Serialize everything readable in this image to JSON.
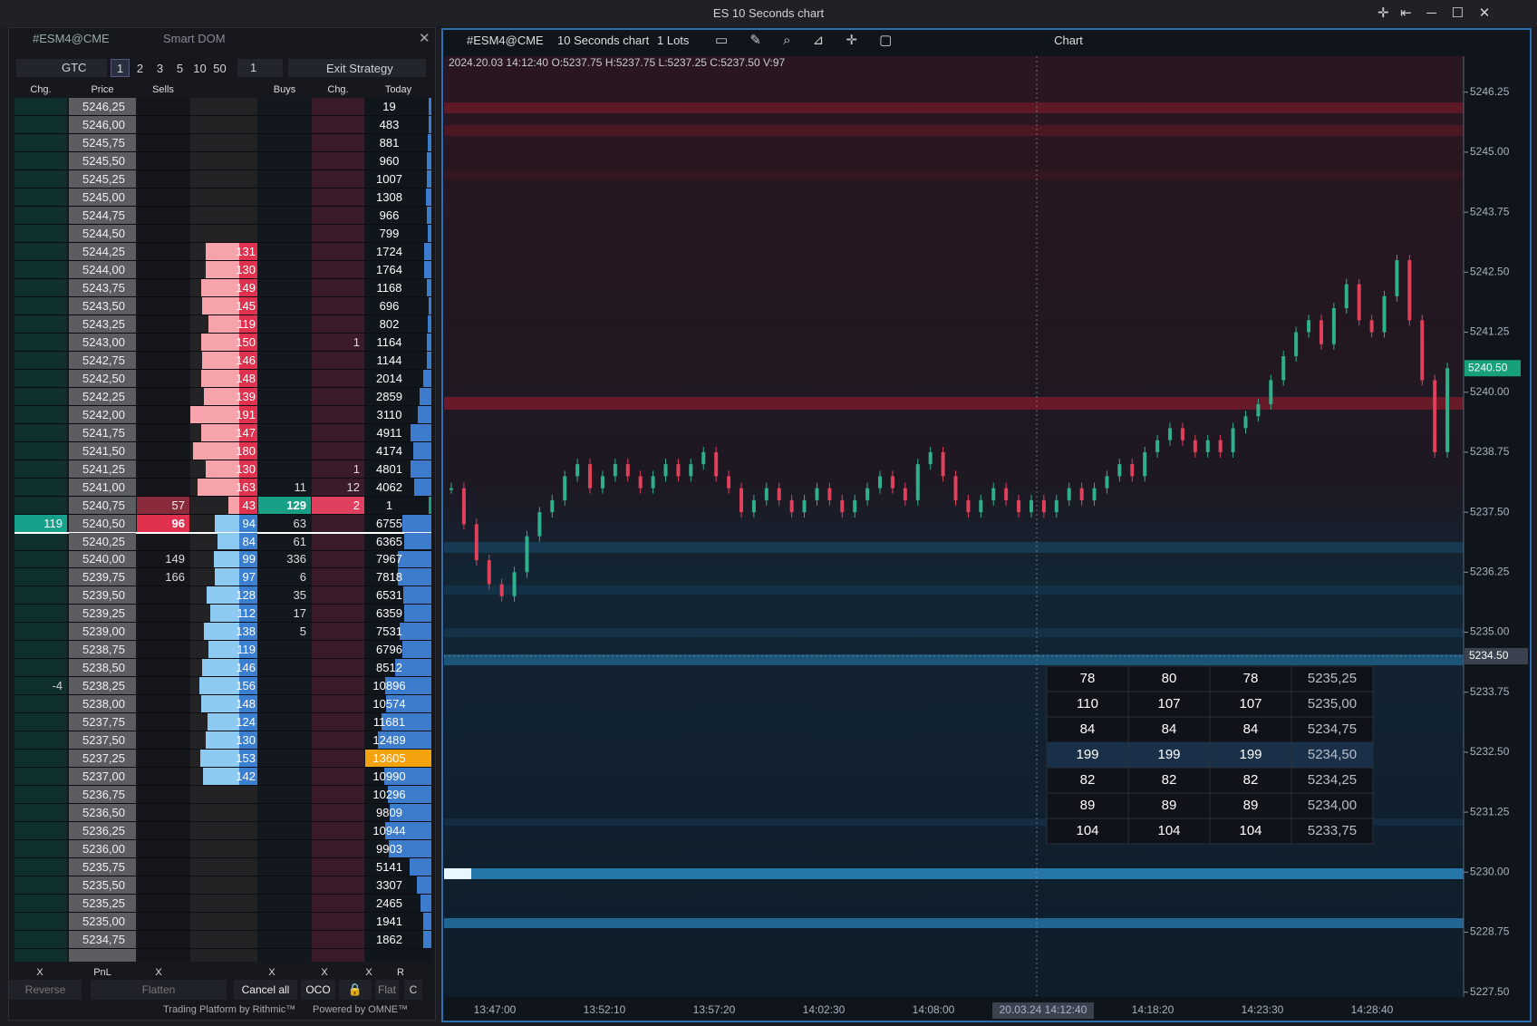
{
  "window": {
    "title": "ES 10 Seconds chart"
  },
  "dom": {
    "symbol": "#ESM4@CME",
    "name": "Smart DOM",
    "tif": "GTC",
    "quantities": [
      "1",
      "2",
      "3",
      "5",
      "10",
      "50"
    ],
    "qty": "1",
    "strategy": "Exit Strategy",
    "headers": [
      "Chg.",
      "Price",
      "Sells",
      "Buys",
      "Chg.",
      "Today"
    ],
    "rows": [
      {
        "price": "5246,25",
        "today": 19
      },
      {
        "price": "5246,00",
        "today": 483
      },
      {
        "price": "5245,75",
        "today": 881
      },
      {
        "price": "5245,50",
        "today": 960
      },
      {
        "price": "5245,25",
        "today": 1007
      },
      {
        "price": "5245,00",
        "today": 1308
      },
      {
        "price": "5244,75",
        "today": 966
      },
      {
        "price": "5244,50",
        "today": 799
      },
      {
        "price": "5244,25",
        "ask": 131,
        "today": 1724
      },
      {
        "price": "5244,00",
        "ask": 130,
        "today": 1764
      },
      {
        "price": "5243,75",
        "ask": 149,
        "today": 1168
      },
      {
        "price": "5243,50",
        "ask": 145,
        "today": 696
      },
      {
        "price": "5243,25",
        "ask": 119,
        "today": 802
      },
      {
        "price": "5243,00",
        "ask": 150,
        "chg2": 1,
        "today": 1164
      },
      {
        "price": "5242,75",
        "ask": 146,
        "today": 1144
      },
      {
        "price": "5242,50",
        "ask": 148,
        "today": 2014
      },
      {
        "price": "5242,25",
        "ask": 139,
        "today": 2859
      },
      {
        "price": "5242,00",
        "ask": 191,
        "today": 3110
      },
      {
        "price": "5241,75",
        "ask": 147,
        "today": 4911
      },
      {
        "price": "5241,50",
        "ask": 180,
        "today": 4174
      },
      {
        "price": "5241,25",
        "ask": 130,
        "chg2": 1,
        "today": 4801
      },
      {
        "price": "5241,00",
        "ask": 163,
        "buys": 11,
        "chg2": 12,
        "today": 4062
      },
      {
        "price": "5240,75",
        "sells": 57,
        "ask": 43,
        "buys": 129,
        "chg2": 2,
        "today": 1
      },
      {
        "chg": 119,
        "price": "5240,50",
        "sells": 96,
        "bid": 94,
        "buys": 63,
        "today": 6755
      },
      {
        "price": "5240,25",
        "bid": 84,
        "buys": 61,
        "today": 6365
      },
      {
        "price": "5240,00",
        "sells": 149,
        "bid": 99,
        "buys": 336,
        "today": 7967
      },
      {
        "price": "5239,75",
        "sells": 166,
        "bid": 97,
        "buys": 6,
        "today": 7818
      },
      {
        "price": "5239,50",
        "bid": 128,
        "buys": 35,
        "today": 6531
      },
      {
        "price": "5239,25",
        "bid": 112,
        "buys": 17,
        "today": 6359
      },
      {
        "price": "5239,00",
        "bid": 138,
        "buys": 5,
        "today": 7531
      },
      {
        "price": "5238,75",
        "bid": 119,
        "today": 6796
      },
      {
        "price": "5238,50",
        "bid": 146,
        "today": 8512
      },
      {
        "chg": -4,
        "price": "5238,25",
        "bid": 156,
        "today": 10896
      },
      {
        "price": "5238,00",
        "bid": 148,
        "today": 10574
      },
      {
        "price": "5237,75",
        "bid": 124,
        "today": 11681
      },
      {
        "price": "5237,50",
        "bid": 130,
        "today": 12489
      },
      {
        "price": "5237,25",
        "bid": 153,
        "today": 13605
      },
      {
        "price": "5237,00",
        "bid": 142,
        "today": 10990
      },
      {
        "price": "5236,75",
        "today": 10296
      },
      {
        "price": "5236,50",
        "today": 9809
      },
      {
        "price": "5236,25",
        "today": 10944
      },
      {
        "price": "5236,00",
        "today": 9903
      },
      {
        "price": "5235,75",
        "today": 5141
      },
      {
        "price": "5235,50",
        "today": 3307
      },
      {
        "price": "5235,25",
        "today": 2465
      },
      {
        "price": "5235,00",
        "today": 1941
      },
      {
        "price": "5234,75",
        "today": 1862
      }
    ],
    "footer": [
      "X",
      "PnL",
      "X",
      "X",
      "X",
      "X",
      "R"
    ],
    "buttons": [
      "Reverse",
      "Flatten",
      "Cancel all",
      "OCO",
      "Flat",
      "C"
    ],
    "credits": [
      "Trading Platform by Rithmic™",
      "Powered by OMNE™"
    ]
  },
  "chart": {
    "symbol": "#ESM4@CME",
    "period": "10 Seconds chart",
    "lots": "1 Lots",
    "title": "Chart",
    "ohlc": "2024.20.03 14:12:40 O:5237.75 H:5237.75 L:5237.25 C:5237.50 V:97",
    "ylim": [
      5227.4,
      5247.0
    ],
    "yticks": [
      {
        "value": 5246.25,
        "label": "5246.25"
      },
      {
        "value": 5245,
        "label": "5245.00"
      },
      {
        "value": 5243.75,
        "label": "5243.75"
      },
      {
        "value": 5242.5,
        "label": "5242.50"
      },
      {
        "value": 5241.25,
        "label": "5241.25"
      },
      {
        "value": 5240,
        "label": "5240.00"
      },
      {
        "value": 5238.75,
        "label": "5238.75"
      },
      {
        "value": 5237.5,
        "label": "5237.50"
      },
      {
        "value": 5236.25,
        "label": "5236.25"
      },
      {
        "value": 5235,
        "label": "5235.00"
      },
      {
        "value": 5233.75,
        "label": "5233.75"
      },
      {
        "value": 5232.5,
        "label": "5232.50"
      },
      {
        "value": 5231.25,
        "label": "5231.25"
      },
      {
        "value": 5230,
        "label": "5230.00"
      },
      {
        "value": 5228.75,
        "label": "5228.75"
      },
      {
        "value": 5227.5,
        "label": "5227.50"
      }
    ],
    "last_price": {
      "value": 5240.5,
      "label": "5240.50"
    },
    "cross_price": {
      "value": 5234.5,
      "label": "5234.50"
    },
    "xlabels": [
      "13:47:00",
      "13:52:10",
      "13:57:20",
      "14:02:30",
      "14:08:00",
      "20.03.24 14:12:40",
      "14:18:20",
      "14:23:30",
      "14:28:40"
    ],
    "closes": [
      5238.0,
      5237.25,
      5236.5,
      5236.0,
      5235.75,
      5236.25,
      5237.0,
      5237.5,
      5237.75,
      5238.25,
      5238.5,
      5238.0,
      5238.25,
      5238.5,
      5238.25,
      5238.0,
      5238.25,
      5238.5,
      5238.25,
      5238.5,
      5238.75,
      5238.25,
      5238.0,
      5237.5,
      5237.75,
      5238.0,
      5237.75,
      5237.5,
      5237.75,
      5238.0,
      5237.75,
      5237.5,
      5237.75,
      5238.0,
      5238.25,
      5238.0,
      5237.75,
      5238.5,
      5238.75,
      5238.25,
      5237.75,
      5237.5,
      5237.75,
      5238.0,
      5237.75,
      5237.5,
      5237.75,
      5237.5,
      5237.75,
      5238.0,
      5237.75,
      5238.0,
      5238.25,
      5238.5,
      5238.25,
      5238.75,
      5239.0,
      5239.25,
      5239.0,
      5238.75,
      5239.0,
      5238.75,
      5239.25,
      5239.5,
      5239.75,
      5240.25,
      5240.75,
      5241.25,
      5241.5,
      5241.0,
      5241.75,
      5242.25,
      5241.5,
      5241.25,
      5242.0,
      5242.75,
      5241.5,
      5240.25,
      5238.75,
      5240.5
    ],
    "popup": [
      [
        78,
        80,
        78,
        "5235,25"
      ],
      [
        110,
        107,
        107,
        "5235,00"
      ],
      [
        84,
        84,
        84,
        "5234,75"
      ],
      [
        199,
        199,
        199,
        "5234,50"
      ],
      [
        82,
        82,
        82,
        "5234,25"
      ],
      [
        89,
        89,
        89,
        "5234,00"
      ],
      [
        104,
        104,
        104,
        "5233,75"
      ]
    ]
  }
}
